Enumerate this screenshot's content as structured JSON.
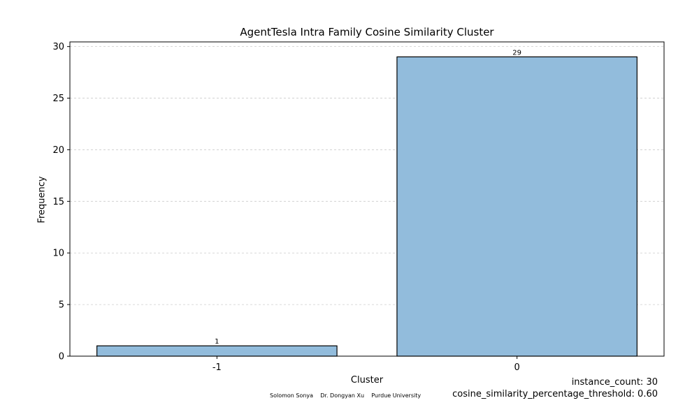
{
  "chart_data": {
    "type": "bar",
    "title": "AgentTesla Intra Family Cosine Similarity Cluster",
    "xlabel": "Cluster",
    "ylabel": "Frequency",
    "categories": [
      "-1",
      "0"
    ],
    "values": [
      1,
      29
    ],
    "data_labels": [
      "1",
      "29"
    ],
    "ylim": [
      0,
      30.45
    ],
    "yticks": [
      0,
      5,
      10,
      15,
      20,
      25,
      30
    ],
    "grid": "y-dashed",
    "bar_color": "#92bcdc",
    "bar_edge_color": "#000000",
    "grid_color": "#cccccc"
  },
  "footer": {
    "credit": "Solomon Sonya    Dr. Dongyan Xu    Purdue University"
  },
  "info": {
    "instance_count": "instance_count: 30",
    "threshold": "cosine_similarity_percentage_threshold: 0.60"
  }
}
